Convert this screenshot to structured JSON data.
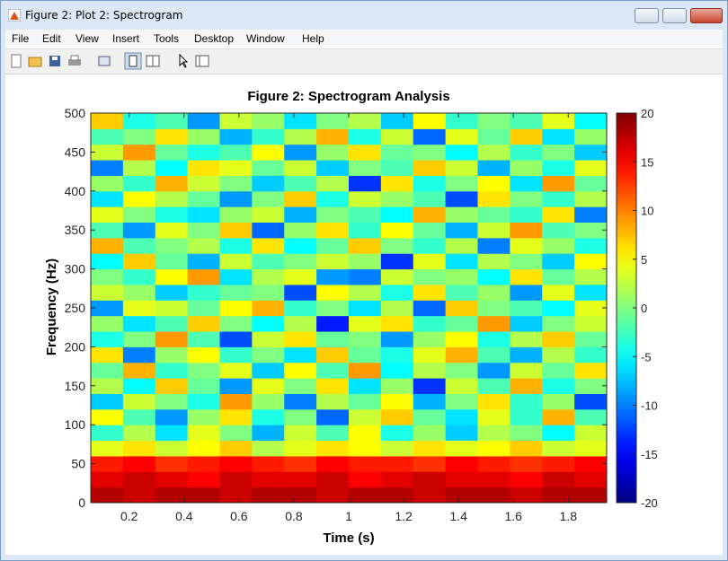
{
  "window_title": "Figure 2: Plot 2: Spectrogram",
  "menu": [
    "File",
    "Edit",
    "View",
    "Insert",
    "Tools",
    "Desktop",
    "Window",
    "Help"
  ],
  "chart_data": {
    "type": "heatmap",
    "title": "Figure 2: Spectrogram Analysis",
    "x_label": "Time (s)",
    "y_label": "Frequency (Hz)",
    "xlim": [
      0.06,
      1.94
    ],
    "ylim": [
      0,
      500
    ],
    "xticks": [
      0.2,
      0.4,
      0.6,
      0.8,
      1,
      1.2,
      1.4,
      1.6,
      1.8
    ],
    "yticks": [
      0,
      50,
      100,
      150,
      200,
      250,
      300,
      350,
      400,
      450,
      500
    ],
    "colormap": "jet",
    "clim": [
      -20,
      20
    ],
    "cticks": [
      -20,
      -15,
      -10,
      -5,
      0,
      5,
      10,
      15,
      20
    ],
    "z": [
      [
        18,
        17,
        18,
        18,
        17,
        18,
        18,
        17,
        18,
        18,
        17,
        18,
        18,
        17,
        18,
        18
      ],
      [
        16,
        17,
        16,
        15,
        17,
        16,
        16,
        17,
        15,
        16,
        17,
        16,
        16,
        15,
        17,
        16
      ],
      [
        14,
        15,
        13,
        14,
        15,
        14,
        13,
        15,
        14,
        14,
        13,
        15,
        14,
        13,
        14,
        15
      ],
      [
        4,
        6,
        3,
        5,
        7,
        2,
        4,
        6,
        5,
        3,
        6,
        4,
        5,
        7,
        3,
        4
      ],
      [
        -3,
        2,
        -6,
        4,
        0,
        -8,
        3,
        -2,
        5,
        -4,
        1,
        -7,
        2,
        0,
        -5,
        3
      ],
      [
        5,
        -2,
        -9,
        1,
        6,
        -4,
        0,
        -11,
        3,
        7,
        -1,
        -6,
        4,
        -3,
        8,
        -2
      ],
      [
        -7,
        3,
        0,
        -4,
        9,
        1,
        -10,
        2,
        -1,
        5,
        -8,
        0,
        6,
        -3,
        1,
        -12
      ],
      [
        2,
        -5,
        7,
        -1,
        -9,
        4,
        0,
        6,
        -6,
        1,
        -13,
        3,
        -2,
        8,
        -4,
        0
      ],
      [
        -1,
        8,
        -3,
        0,
        4,
        -7,
        5,
        -2,
        9,
        -5,
        2,
        0,
        -9,
        3,
        -1,
        6
      ],
      [
        6,
        -10,
        1,
        5,
        -3,
        0,
        -6,
        7,
        -1,
        -4,
        4,
        8,
        -2,
        -8,
        2,
        -3
      ],
      [
        -4,
        0,
        9,
        -2,
        -12,
        3,
        6,
        -1,
        0,
        -9,
        1,
        5,
        -4,
        2,
        7,
        -1
      ],
      [
        1,
        -6,
        -2,
        7,
        0,
        -5,
        2,
        -14,
        4,
        6,
        -3,
        -1,
        9,
        -7,
        0,
        3
      ],
      [
        -9,
        4,
        3,
        -1,
        5,
        8,
        -3,
        0,
        -6,
        2,
        -11,
        7,
        0,
        -2,
        -5,
        4
      ],
      [
        3,
        1,
        -7,
        -3,
        -1,
        0,
        -12,
        5,
        2,
        -4,
        6,
        -2,
        1,
        -9,
        4,
        -6
      ],
      [
        0,
        -3,
        5,
        9,
        -6,
        2,
        4,
        -9,
        -10,
        3,
        0,
        1,
        -5,
        6,
        -1,
        2
      ],
      [
        -5,
        7,
        -1,
        -8,
        3,
        -2,
        0,
        3,
        1,
        -13,
        4,
        -6,
        2,
        0,
        -7,
        5
      ],
      [
        8,
        -2,
        0,
        2,
        -4,
        6,
        -5,
        -1,
        7,
        0,
        -3,
        2,
        -10,
        4,
        1,
        -4
      ],
      [
        -2,
        -9,
        4,
        0,
        7,
        -11,
        1,
        6,
        -3,
        5,
        -1,
        -8,
        3,
        9,
        -2,
        0
      ],
      [
        4,
        0,
        -4,
        -6,
        1,
        3,
        -8,
        0,
        -2,
        -5,
        8,
        1,
        -1,
        -3,
        6,
        -10
      ],
      [
        -6,
        5,
        2,
        -1,
        -9,
        0,
        7,
        -4,
        3,
        1,
        -2,
        -12,
        6,
        0,
        -3,
        2
      ],
      [
        1,
        -3,
        8,
        3,
        0,
        -7,
        -2,
        2,
        -13,
        6,
        -4,
        0,
        5,
        -6,
        9,
        -1
      ],
      [
        -10,
        2,
        -5,
        6,
        4,
        -1,
        3,
        -7,
        0,
        -2,
        7,
        3,
        -8,
        1,
        -4,
        4
      ],
      [
        3,
        9,
        -1,
        -4,
        -2,
        5,
        -9,
        1,
        6,
        -1,
        0,
        -5,
        2,
        -3,
        0,
        -7
      ],
      [
        -2,
        0,
        6,
        1,
        -8,
        -3,
        2,
        8,
        -4,
        3,
        -11,
        4,
        -1,
        7,
        -6,
        1
      ],
      [
        7,
        -4,
        -2,
        -9,
        3,
        1,
        -6,
        0,
        2,
        -7,
        5,
        -3,
        0,
        -2,
        4,
        -5
      ]
    ]
  }
}
